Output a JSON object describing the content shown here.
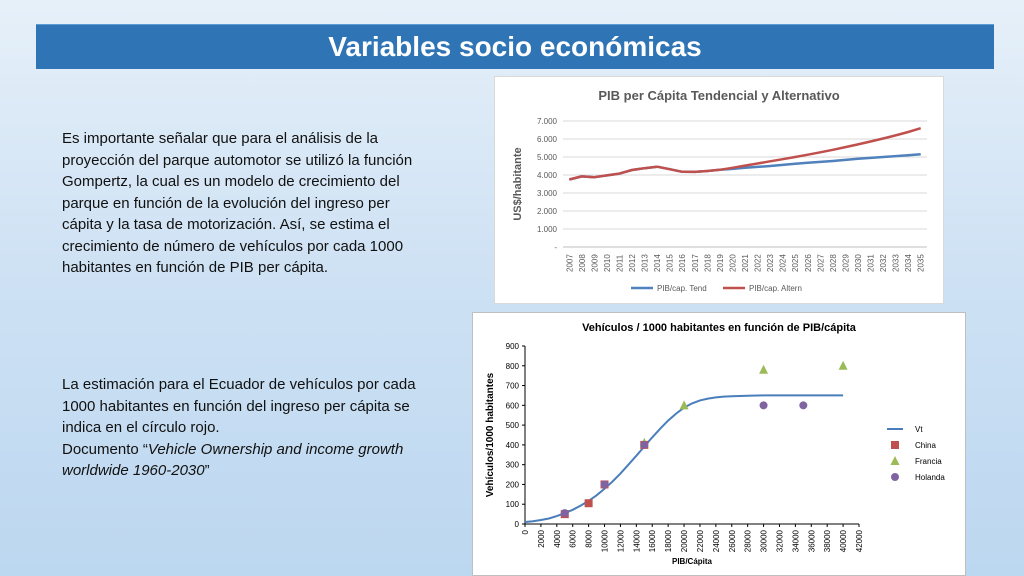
{
  "slide": {
    "title": "Variables socio económicas",
    "paragraph1": "Es importante señalar que para el análisis de la proyección del parque automotor se utilizó la función Gompertz, la cual es un modelo de crecimiento del parque en función de la evolución del ingreso per cápita y la tasa de motorización. Así, se estima el crecimiento de número de vehículos por cada 1000 habitantes en función de PIB per cápita.",
    "paragraph2_text": "La estimación para el Ecuador de vehículos por cada 1000 habitantes en función del ingreso per cápita se indica en el círculo rojo.",
    "paragraph2_doc_prefix": "Documento “",
    "paragraph2_doc_title": "Vehicle Ownership and income growth worldwide 1960-2030",
    "paragraph2_doc_suffix": "”"
  },
  "colors": {
    "title_bg": "#2f75b5",
    "series_tend": "#4f81bd",
    "series_altern": "#c0504d",
    "vt": "#4a7ebb",
    "china": "#c0504d",
    "francia": "#9bbb59",
    "holanda": "#8064a2"
  },
  "chart_data": [
    {
      "type": "line",
      "title": "PIB per Cápita Tendencial y Alternativo",
      "ylabel": "US$/habitante",
      "xlabel": "",
      "ylim": [
        0,
        7000
      ],
      "yticks": [
        "-",
        "1.000",
        "2.000",
        "3.000",
        "4.000",
        "5.000",
        "6.000",
        "7.000"
      ],
      "categories": [
        "2007",
        "2008",
        "2009",
        "2010",
        "2011",
        "2012",
        "2013",
        "2014",
        "2015",
        "2016",
        "2017",
        "2018",
        "2019",
        "2020",
        "2021",
        "2022",
        "2023",
        "2024",
        "2025",
        "2026",
        "2027",
        "2028",
        "2029",
        "2030",
        "2031",
        "2032",
        "2033",
        "2034",
        "2035"
      ],
      "legend_position": "bottom",
      "series": [
        {
          "name": "PIB/cap. Tend",
          "color_key": "series_tend",
          "values": [
            3750,
            3920,
            3880,
            3980,
            4080,
            4280,
            4380,
            4460,
            4320,
            4180,
            4170,
            4220,
            4290,
            4340,
            4400,
            4450,
            4500,
            4560,
            4620,
            4680,
            4730,
            4780,
            4840,
            4900,
            4950,
            5000,
            5050,
            5100,
            5150
          ]
        },
        {
          "name": "PIB/cap. Altern",
          "color_key": "series_altern",
          "values": [
            3750,
            3920,
            3880,
            3980,
            4080,
            4280,
            4380,
            4460,
            4320,
            4180,
            4170,
            4220,
            4290,
            4400,
            4520,
            4640,
            4760,
            4880,
            5000,
            5130,
            5260,
            5400,
            5550,
            5700,
            5860,
            6030,
            6200,
            6390,
            6600
          ]
        }
      ]
    },
    {
      "type": "scatter",
      "title": "Vehículos / 1000 habitantes en función de PIB/cápita",
      "xlabel": "PIB/Cápita",
      "ylabel": "Vehículos/1000 habitantes",
      "xlim": [
        0,
        42000
      ],
      "ylim": [
        0,
        900
      ],
      "xticks": [
        0,
        2000,
        4000,
        6000,
        8000,
        10000,
        12000,
        14000,
        16000,
        18000,
        20000,
        22000,
        24000,
        26000,
        28000,
        30000,
        32000,
        34000,
        36000,
        38000,
        40000,
        42000
      ],
      "yticks": [
        0,
        100,
        200,
        300,
        400,
        500,
        600,
        700,
        800,
        900
      ],
      "legend_position": "right",
      "series": [
        {
          "name": "Vt",
          "kind": "line",
          "color_key": "vt",
          "x": [
            0,
            1000,
            2000,
            3000,
            4000,
            5000,
            6000,
            7000,
            8000,
            9000,
            10000,
            11000,
            12000,
            13000,
            14000,
            15000,
            16000,
            17000,
            18000,
            19000,
            20000,
            21000,
            22000,
            23000,
            24000,
            25000,
            26000,
            28000,
            30000,
            32000,
            34000,
            36000,
            38000,
            40000
          ],
          "y": [
            10,
            14,
            20,
            28,
            40,
            55,
            72,
            93,
            117,
            145,
            178,
            215,
            255,
            300,
            345,
            392,
            438,
            482,
            523,
            558,
            588,
            610,
            625,
            634,
            640,
            644,
            646,
            648,
            650,
            650,
            650,
            650,
            650,
            650
          ]
        },
        {
          "name": "China",
          "kind": "marker",
          "marker": "square",
          "color_key": "china",
          "x": [
            5000,
            8000,
            10000,
            15000
          ],
          "y": [
            50,
            105,
            200,
            400
          ]
        },
        {
          "name": "Francia",
          "kind": "marker",
          "marker": "triangle",
          "color_key": "francia",
          "x": [
            15000,
            20000,
            30000,
            40000
          ],
          "y": [
            410,
            600,
            780,
            800
          ]
        },
        {
          "name": "Holanda",
          "kind": "marker",
          "marker": "circle",
          "color_key": "holanda",
          "x": [
            5000,
            10000,
            15000,
            30000,
            35000
          ],
          "y": [
            55,
            200,
            400,
            600,
            600
          ]
        }
      ]
    }
  ]
}
